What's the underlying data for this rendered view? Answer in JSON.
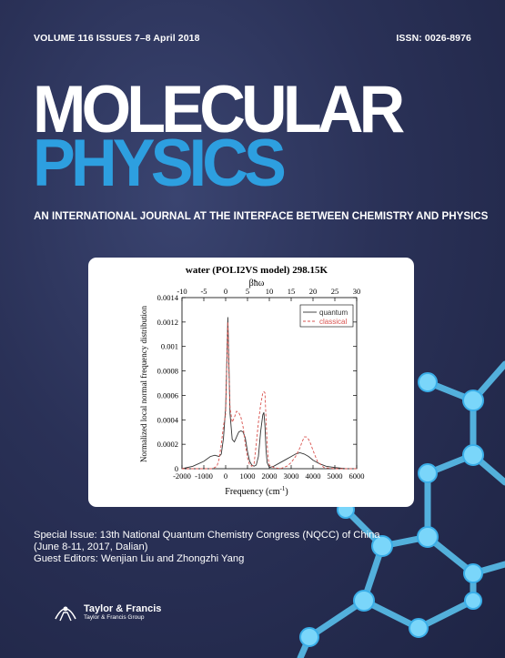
{
  "cover": {
    "volume": "VOLUME 116  ISSUES 7–8 April 2018",
    "issn": "ISSN: 0026-8976",
    "title_line1": "MOLECULAR",
    "title_line2": "PHYSICS",
    "subtitle": "AN INTERNATIONAL JOURNAL AT THE INTERFACE BETWEEN CHEMISTRY AND PHYSICS",
    "special_issue": [
      "Special Issue: 13th National Quantum Chemistry Congress (NQCC) of China",
      "(June 8-11, 2017, Dalian)",
      "Guest Editors: Wenjian Liu and Zhongzhi Yang"
    ],
    "publisher_name": "Taylor & Francis",
    "publisher_group": "Taylor & Francis Group",
    "colors": {
      "accent": "#2d9fe0",
      "background": "#262c50"
    }
  },
  "chart_data": {
    "type": "line",
    "title": "water (POLI2VS model) 298.15K",
    "top_axis_label": "βħω",
    "top_ticks": [
      "-10",
      "-5",
      "0",
      "5",
      "10",
      "15",
      "20",
      "25",
      "30"
    ],
    "top_tick_values": [
      -10,
      -5,
      0,
      5,
      10,
      15,
      20,
      25,
      30
    ],
    "xlabel": "Frequency (cm",
    "xlabel_sup": "-1",
    "xlabel_end": ")",
    "ylabel": "Normalized local normal frequency distribution",
    "xlim": [
      -2000,
      6000
    ],
    "ylim": [
      0,
      0.0014
    ],
    "x_ticks": [
      "-2000",
      "-1000",
      "0",
      "1000",
      "2000",
      "3000",
      "4000",
      "5000",
      "6000"
    ],
    "x_tick_values": [
      -2000,
      -1000,
      0,
      1000,
      2000,
      3000,
      4000,
      5000,
      6000
    ],
    "y_ticks": [
      "0",
      "0.0002",
      "0.0004",
      "0.0006",
      "0.0008",
      "0.001",
      "0.0012",
      "0.0014"
    ],
    "y_tick_values": [
      0,
      0.0002,
      0.0004,
      0.0006,
      0.0008,
      0.001,
      0.0012,
      0.0014
    ],
    "legend_position": "top-right",
    "series": [
      {
        "name": "quantum",
        "color": "#333333",
        "style": "solid",
        "x": [
          -2000,
          -1500,
          -1000,
          -700,
          -500,
          -300,
          -200,
          -100,
          0,
          50,
          100,
          150,
          200,
          300,
          400,
          500,
          600,
          700,
          800,
          900,
          1000,
          1100,
          1200,
          1300,
          1400,
          1500,
          1600,
          1700,
          1750,
          1800,
          1850,
          1900,
          2000,
          2200,
          2500,
          2800,
          3000,
          3200,
          3400,
          3600,
          3800,
          4000,
          4300,
          4600,
          5000,
          5500,
          6000
        ],
        "y": [
          0.0,
          2e-05,
          6e-05,
          0.0001,
          0.00011,
          0.0001,
          0.00012,
          0.00025,
          0.0005,
          0.00085,
          0.00124,
          0.00085,
          0.00045,
          0.00024,
          0.00022,
          0.00026,
          0.0003,
          0.00031,
          0.0003,
          0.00025,
          0.00014,
          6e-05,
          3e-05,
          2e-05,
          3e-05,
          0.0001,
          0.0003,
          0.00044,
          0.00046,
          0.00035,
          0.00015,
          5e-05,
          1e-05,
          2e-05,
          5e-05,
          8e-05,
          0.0001,
          0.00012,
          0.00013,
          0.00012,
          0.0001,
          7e-05,
          4e-05,
          2e-05,
          1e-05,
          0.0,
          0.0
        ]
      },
      {
        "name": "classical",
        "color": "#d9534f",
        "style": "dashed",
        "x": [
          -2000,
          -1000,
          -600,
          -400,
          -300,
          -200,
          -100,
          -50,
          0,
          50,
          100,
          150,
          200,
          300,
          400,
          500,
          600,
          700,
          800,
          900,
          1000,
          1100,
          1200,
          1300,
          1400,
          1500,
          1600,
          1700,
          1750,
          1800,
          1850,
          1900,
          1950,
          2000,
          2200,
          2500,
          2800,
          3000,
          3200,
          3400,
          3500,
          3600,
          3700,
          3800,
          3900,
          4000,
          4200,
          4500,
          5000,
          6000
        ],
        "y": [
          0.0,
          0.0,
          0.0,
          2e-05,
          8e-05,
          0.0002,
          0.00035,
          0.0004,
          0.00045,
          0.00085,
          0.0012,
          0.0008,
          0.0005,
          0.00038,
          0.00042,
          0.00047,
          0.00046,
          0.00042,
          0.00034,
          0.0002,
          9e-05,
          3e-05,
          2e-05,
          4e-05,
          0.0002,
          0.00038,
          0.00052,
          0.00062,
          0.00063,
          0.00062,
          0.0004,
          0.0002,
          8e-05,
          3e-05,
          1e-05,
          0.0,
          2e-05,
          5e-05,
          0.0001,
          0.00017,
          0.00022,
          0.00026,
          0.00026,
          0.00024,
          0.0002,
          0.00015,
          6e-05,
          1e-05,
          0.0,
          0.0
        ]
      }
    ]
  }
}
